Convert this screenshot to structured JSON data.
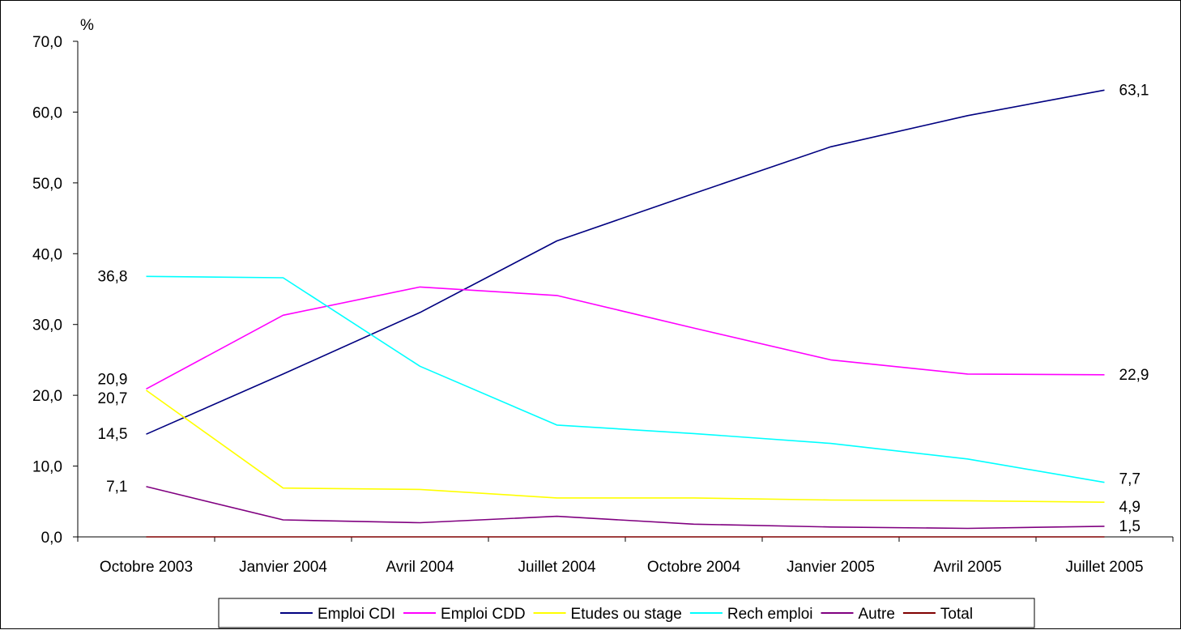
{
  "chart_data": {
    "type": "line",
    "ylabel": "%",
    "ylim": [
      0,
      70
    ],
    "yticks": [
      "0,0",
      "10,0",
      "20,0",
      "30,0",
      "40,0",
      "50,0",
      "60,0",
      "70,0"
    ],
    "categories": [
      "Octobre 2003",
      "Janvier 2004",
      "Avril 2004",
      "Juillet 2004",
      "Octobre 2004",
      "Janvier 2005",
      "Avril 2005",
      "Juillet 2005"
    ],
    "legend_position": "bottom",
    "series": [
      {
        "name": "Emploi CDI",
        "color": "#000080",
        "values": [
          14.5,
          23.0,
          31.7,
          41.8,
          48.5,
          55.1,
          59.5,
          63.1
        ]
      },
      {
        "name": "Emploi CDD",
        "color": "#ff00ff",
        "values": [
          20.9,
          31.3,
          35.3,
          34.1,
          29.5,
          25.0,
          23.0,
          22.9
        ]
      },
      {
        "name": "Etudes ou stage",
        "color": "#ffff00",
        "values": [
          20.7,
          6.9,
          6.7,
          5.5,
          5.5,
          5.2,
          5.1,
          4.9
        ]
      },
      {
        "name": "Rech emploi",
        "color": "#00ffff",
        "values": [
          36.8,
          36.6,
          24.1,
          15.8,
          14.6,
          13.2,
          11.0,
          7.7
        ]
      },
      {
        "name": "Autre",
        "color": "#800080",
        "values": [
          7.1,
          2.4,
          2.0,
          2.9,
          1.8,
          1.4,
          1.2,
          1.5
        ]
      },
      {
        "name": "Total",
        "color": "#800000",
        "values": [
          0,
          0,
          0,
          0,
          0,
          0,
          0,
          0
        ]
      }
    ],
    "data_labels": [
      {
        "series": "Rech emploi",
        "index": 0,
        "text": "36,8"
      },
      {
        "series": "Emploi CDD",
        "index": 0,
        "text": "20,9"
      },
      {
        "series": "Etudes ou stage",
        "index": 0,
        "text": "20,7"
      },
      {
        "series": "Emploi CDI",
        "index": 0,
        "text": "14,5"
      },
      {
        "series": "Autre",
        "index": 0,
        "text": "7,1"
      },
      {
        "series": "Emploi CDI",
        "index": 7,
        "text": "63,1"
      },
      {
        "series": "Emploi CDD",
        "index": 7,
        "text": "22,9"
      },
      {
        "series": "Rech emploi",
        "index": 7,
        "text": "7,7"
      },
      {
        "series": "Etudes ou stage",
        "index": 7,
        "text": "4,9"
      },
      {
        "series": "Autre",
        "index": 7,
        "text": "1,5"
      }
    ]
  }
}
